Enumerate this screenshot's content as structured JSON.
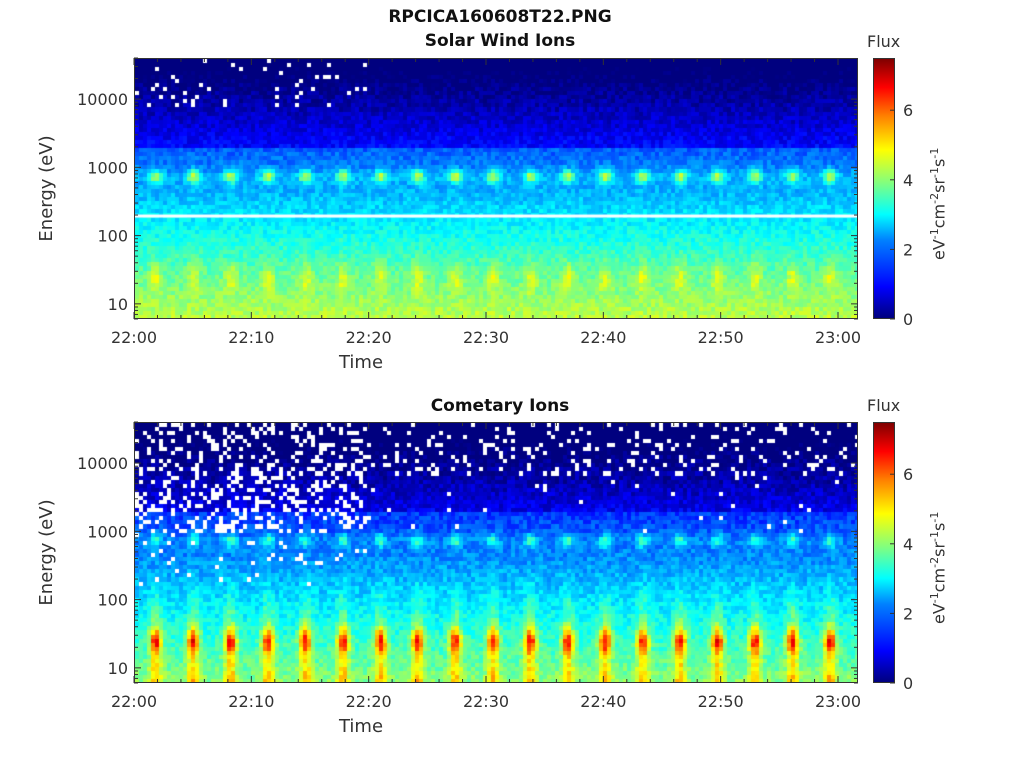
{
  "figure_title": "RPCICA160608T22.PNG",
  "chart_data": [
    {
      "type": "heatmap",
      "title": "Solar Wind Ions",
      "xlabel": "Time",
      "ylabel": "Energy (eV)",
      "x_tick_labels": [
        "22:00",
        "22:10",
        "22:20",
        "22:30",
        "22:40",
        "22:50",
        "23:00"
      ],
      "y_tick_labels": [
        "10",
        "100",
        "1000",
        "10000"
      ],
      "y_ticks": [
        10,
        100,
        1000,
        10000
      ],
      "ylim": [
        6,
        40000
      ],
      "y_scale": "log",
      "colorbar": {
        "label": "Flux",
        "unit": "eV-1cm-2sr-1s-1",
        "range": [
          0,
          7.5
        ],
        "tick_labels": [
          "0",
          "2",
          "4",
          "6"
        ],
        "ticks": [
          0,
          2,
          4,
          6
        ]
      },
      "features": {
        "pulse_period_minutes": 3.2,
        "band_low_energy_peak_eV": 25,
        "band_mid_energy_peak_eV": 750,
        "white_gap_energy_eV": 200
      }
    },
    {
      "type": "heatmap",
      "title": "Cometary Ions",
      "xlabel": "Time",
      "ylabel": "Energy (eV)",
      "x_tick_labels": [
        "22:00",
        "22:10",
        "22:20",
        "22:30",
        "22:40",
        "22:50",
        "23:00"
      ],
      "y_tick_labels": [
        "10",
        "100",
        "1000",
        "10000"
      ],
      "y_ticks": [
        10,
        100,
        1000,
        10000
      ],
      "ylim": [
        6,
        40000
      ],
      "y_scale": "log",
      "colorbar": {
        "label": "Flux",
        "unit": "eV-1cm-2sr-1s-1",
        "range": [
          0,
          7.5
        ],
        "tick_labels": [
          "0",
          "2",
          "4",
          "6"
        ],
        "ticks": [
          0,
          2,
          4,
          6
        ]
      },
      "features": {
        "pulse_period_minutes": 3.2,
        "band_low_energy_peak_eV": 25,
        "band_mid_energy_peak_eV": 750
      }
    }
  ],
  "colorbar_text": {
    "unit_base1": "eV",
    "unit_exp1": "-1",
    "unit_base2": "cm",
    "unit_exp2": "-2",
    "unit_base3": "sr",
    "unit_exp3": "-1",
    "unit_base4": "s",
    "unit_exp4": "-1"
  }
}
